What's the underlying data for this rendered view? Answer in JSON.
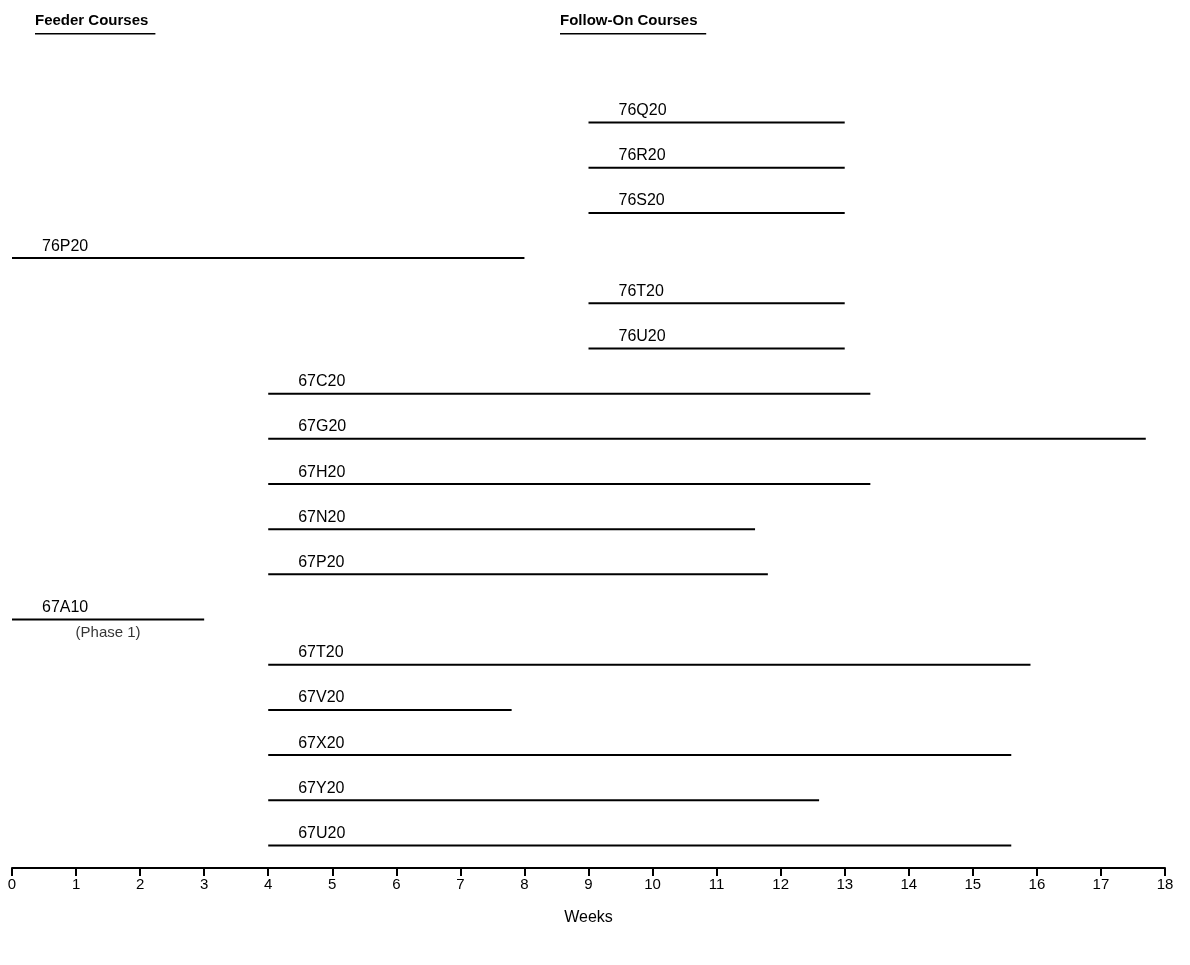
{
  "chart_data": {
    "type": "bar",
    "orientation": "horizontal",
    "xlabel": "Weeks",
    "categories": [
      "76Q20",
      "76R20",
      "76S20",
      "76P20",
      "76T20",
      "76U20",
      "67C20",
      "67G20",
      "67H20",
      "67N20",
      "67P20",
      "67A10",
      "67T20",
      "67V20",
      "67X20",
      "67Y20",
      "67U20"
    ],
    "base": [
      9,
      9,
      9,
      0,
      9,
      9,
      4,
      4,
      4,
      4,
      4,
      0,
      4,
      4,
      4,
      4,
      4
    ],
    "values": [
      4,
      4,
      4,
      8,
      4,
      4,
      9.4,
      13.7,
      9.4,
      7.6,
      7.8,
      3,
      11.9,
      3.8,
      11.6,
      8.6,
      11.6
    ],
    "color": "#000000",
    "xlim": [
      0,
      18
    ],
    "xticks": [
      0,
      1,
      2,
      3,
      4,
      5,
      6,
      7,
      8,
      9,
      10,
      11,
      12,
      13,
      14,
      15,
      16,
      17,
      18
    ],
    "grid": false,
    "tick_labels": "x",
    "annotations": [
      "Feeder Courses",
      "Follow-On Courses",
      {
        "text": "(Phase 1)",
        "x": 1.5,
        "y": "67A10"
      }
    ]
  }
}
